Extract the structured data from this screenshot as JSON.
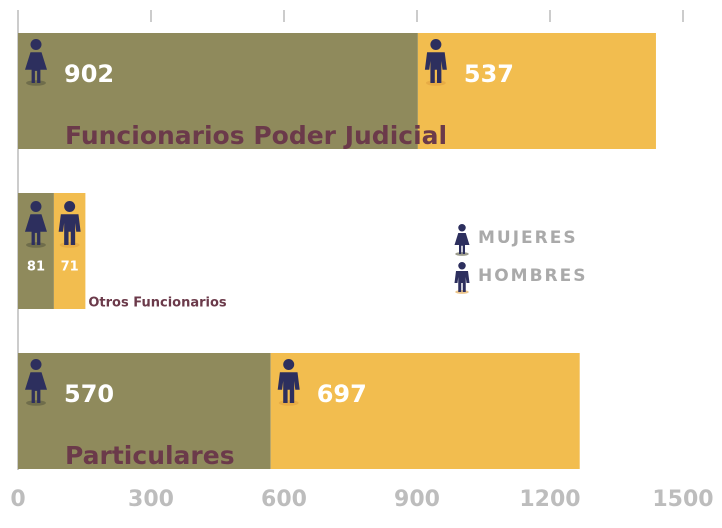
{
  "chart_data": {
    "type": "bar",
    "orientation": "horizontal",
    "stacked": true,
    "categories": [
      "Funcionarios Poder Judicial",
      "Otros Funcionarios",
      "Particulares"
    ],
    "series": [
      {
        "name": "MUJERES",
        "color": "#8f8a5c",
        "values": [
          902,
          81,
          570
        ]
      },
      {
        "name": "HOMBRES",
        "color": "#f2bd4f",
        "values": [
          537,
          71,
          697
        ]
      }
    ],
    "xlim": [
      0,
      1500
    ],
    "xticks": [
      0,
      300,
      600,
      900,
      1200,
      1500
    ],
    "legend": "right"
  }
}
